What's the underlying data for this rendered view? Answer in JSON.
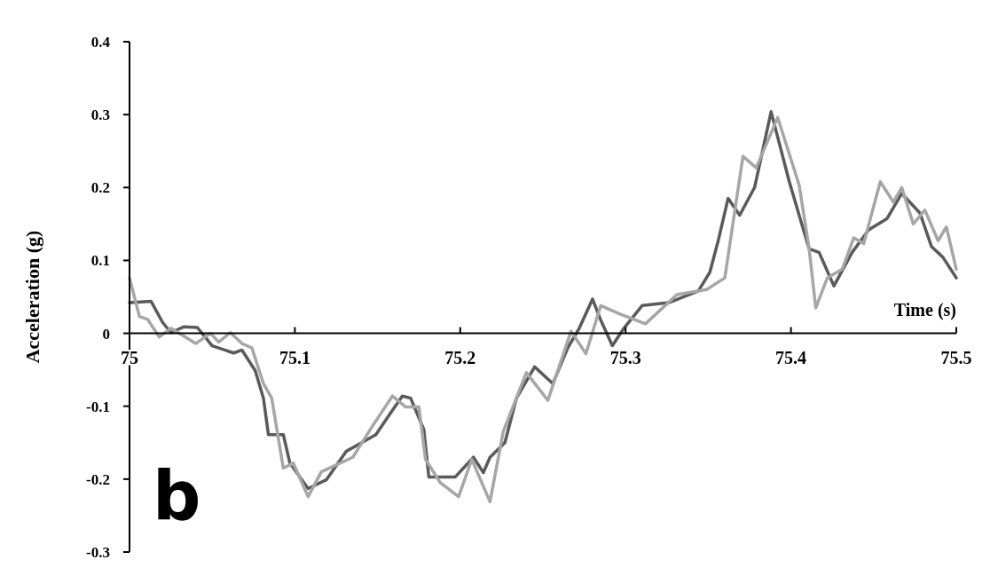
{
  "chart_data": {
    "type": "line",
    "xlabel": "Time (s)",
    "ylabel": "Acceleration (g)",
    "annotations": [
      "b"
    ],
    "xlim": [
      75,
      75.5
    ],
    "xticks": [
      75,
      75.1,
      75.2,
      75.3,
      75.4,
      75.5
    ],
    "ylim": [
      -0.3,
      0.4
    ],
    "yticks": [
      -0.3,
      -0.2,
      -0.1,
      0,
      0.1,
      0.2,
      0.3,
      0.4
    ],
    "grid": false,
    "marker": "none",
    "line_style": "solid",
    "series": [
      {
        "color": "#5a5a5a",
        "x": [
          75,
          75.013,
          75.02,
          75.025,
          75.033,
          75.041,
          75.05,
          75.063,
          75.068,
          75.076,
          75.081,
          75.084,
          75.093,
          75.097,
          75.108,
          75.119,
          75.131,
          75.149,
          75.158,
          75.165,
          75.17,
          75.178,
          75.181,
          75.197,
          75.208,
          75.214,
          75.218,
          75.227,
          75.234,
          75.245,
          75.256,
          75.265,
          75.272,
          75.28,
          75.285,
          75.292,
          75.299,
          75.31,
          75.326,
          75.344,
          75.351,
          75.356,
          75.362,
          75.369,
          75.378,
          75.388,
          75.399,
          75.406,
          75.411,
          75.417,
          75.426,
          75.437,
          75.447,
          75.458,
          75.467,
          75.478,
          75.485,
          75.492,
          75.5
        ],
        "values": [
          0.042,
          0.044,
          0.015,
          0.001,
          0.009,
          0.008,
          -0.017,
          -0.027,
          -0.023,
          -0.051,
          -0.089,
          -0.139,
          -0.139,
          -0.178,
          -0.213,
          -0.201,
          -0.162,
          -0.139,
          -0.109,
          -0.086,
          -0.089,
          -0.132,
          -0.197,
          -0.197,
          -0.17,
          -0.191,
          -0.17,
          -0.15,
          -0.089,
          -0.046,
          -0.069,
          -0.02,
          0.007,
          0.047,
          0.018,
          -0.017,
          0.007,
          0.038,
          0.042,
          0.058,
          0.084,
          0.127,
          0.185,
          0.162,
          0.2,
          0.304,
          0.208,
          0.154,
          0.116,
          0.111,
          0.065,
          0.111,
          0.142,
          0.157,
          0.192,
          0.165,
          0.119,
          0.104,
          0.076
        ]
      },
      {
        "color": "#a6a6a6",
        "x": [
          75,
          75.006,
          75.011,
          75.018,
          75.025,
          75.04,
          75.049,
          75.054,
          75.061,
          75.068,
          75.074,
          75.081,
          75.086,
          75.093,
          75.099,
          75.108,
          75.116,
          75.135,
          75.147,
          75.159,
          75.167,
          75.175,
          75.179,
          75.188,
          75.199,
          75.207,
          75.218,
          75.226,
          75.24,
          75.253,
          75.267,
          75.276,
          75.285,
          75.296,
          75.312,
          75.331,
          75.349,
          75.36,
          75.371,
          75.379,
          75.392,
          75.405,
          75.411,
          75.415,
          75.422,
          75.431,
          75.438,
          75.444,
          75.454,
          75.462,
          75.467,
          75.474,
          75.481,
          75.489,
          75.494,
          75.5
        ],
        "values": [
          0.076,
          0.023,
          0.019,
          -0.005,
          0.007,
          -0.014,
          0,
          -0.012,
          0.001,
          -0.014,
          -0.02,
          -0.069,
          -0.089,
          -0.185,
          -0.178,
          -0.224,
          -0.19,
          -0.17,
          -0.127,
          -0.086,
          -0.101,
          -0.101,
          -0.173,
          -0.205,
          -0.224,
          -0.173,
          -0.231,
          -0.135,
          -0.054,
          -0.092,
          0.003,
          -0.028,
          0.038,
          0.027,
          0.013,
          0.053,
          0.06,
          0.076,
          0.243,
          0.227,
          0.296,
          0.203,
          0.116,
          0.035,
          0.076,
          0.088,
          0.131,
          0.123,
          0.208,
          0.18,
          0.2,
          0.15,
          0.169,
          0.127,
          0.146,
          0.088
        ]
      }
    ]
  }
}
